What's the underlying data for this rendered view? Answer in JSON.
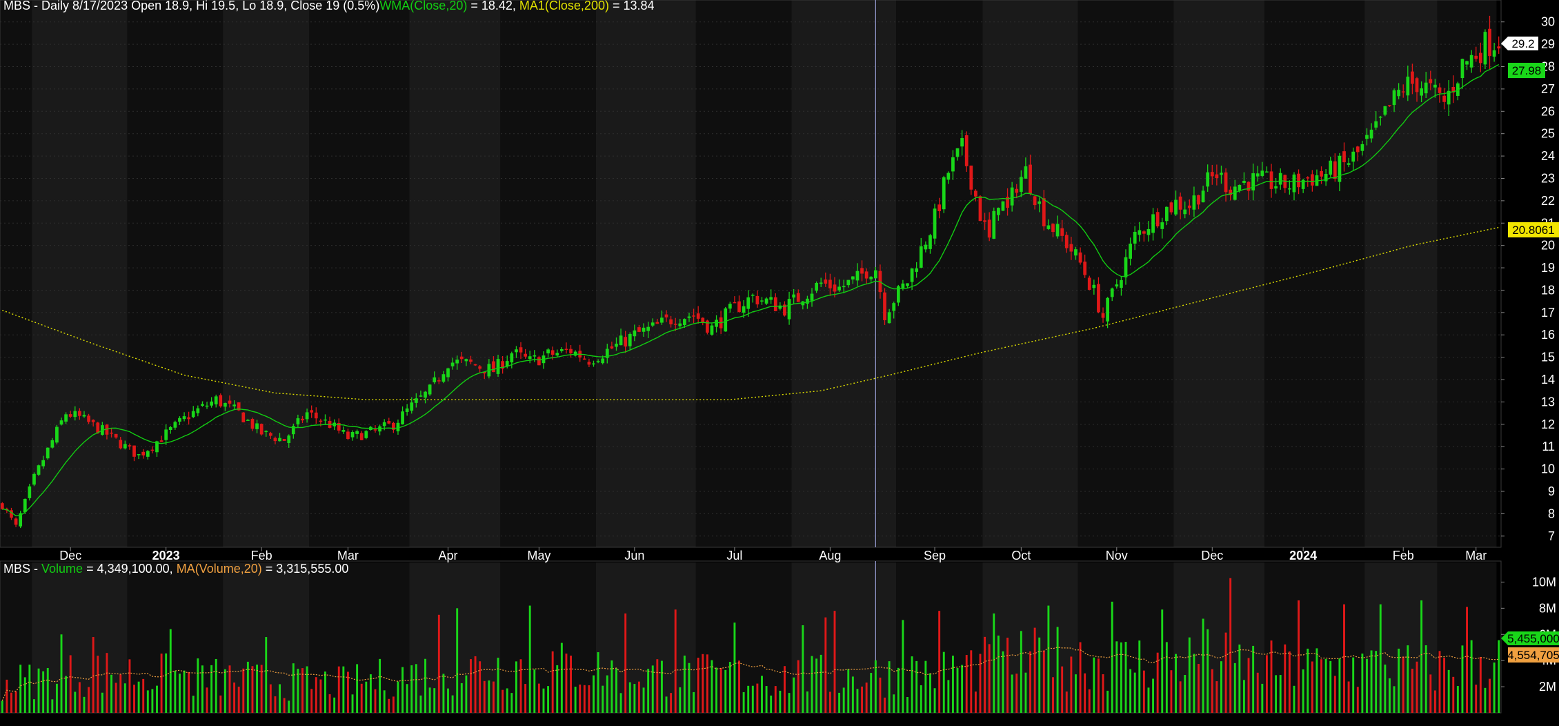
{
  "colors": {
    "up": "#19d719",
    "down": "#e01818",
    "wma": "#12cc12",
    "ma200": "#e0e000",
    "vol_ma": "#f0a040",
    "text": "#ffffff",
    "band_dark": "#0f0f0f",
    "band_light": "#1a1a1a",
    "grid": "#2e2e2e",
    "cursor": "#9aa0d8"
  },
  "price_panel": {
    "symbol": "MBS",
    "header_main": "MBS - Daily 8/17/2023 Open 18.9, Hi 19.5, Lo 18.9, Close 19 (0.5%)",
    "header_wma_label": "WMA(Close,20)",
    "header_wma_value": " = 18.42, ",
    "header_ma_label": "MA1(Close,200)",
    "header_ma_value": " = 13.84",
    "last_price_tag": "29.2",
    "wma_tag": "27.98",
    "ma200_tag": "20.8061"
  },
  "volume_panel": {
    "header_main": "MBS - ",
    "header_vol_label": "Volume",
    "header_vol_value": " = 4,349,100.00, ",
    "header_ma_label": "MA(Volume,20)",
    "header_ma_value": " = 3,315,555.00",
    "volume_tag": "5,455,000",
    "vol_ma_tag": "4,554,705"
  },
  "chart_data": [
    {
      "type": "candlestick",
      "title": "MBS - Daily",
      "ylim": [
        6.5,
        30.3
      ],
      "y_ticks": [
        7,
        8,
        9,
        10,
        11,
        12,
        13,
        14,
        15,
        16,
        17,
        18,
        19,
        20,
        21,
        22,
        23,
        24,
        25,
        26,
        27,
        28,
        29,
        30
      ],
      "x_tick_labels": [
        {
          "label": "Dec",
          "bar": 15,
          "bold": false
        },
        {
          "label": "2023",
          "bar": 36,
          "bold": true
        },
        {
          "label": "Feb",
          "bar": 57,
          "bold": false
        },
        {
          "label": "Mar",
          "bar": 76,
          "bold": false
        },
        {
          "label": "Apr",
          "bar": 98,
          "bold": false
        },
        {
          "label": "May",
          "bar": 118,
          "bold": false
        },
        {
          "label": "Jun",
          "bar": 139,
          "bold": false
        },
        {
          "label": "Jul",
          "bar": 161,
          "bold": false
        },
        {
          "label": "Aug",
          "bar": 182,
          "bold": false
        },
        {
          "label": "Sep",
          "bar": 205,
          "bold": false
        },
        {
          "label": "Oct",
          "bar": 224,
          "bold": false
        },
        {
          "label": "Nov",
          "bar": 245,
          "bold": false
        },
        {
          "label": "Dec",
          "bar": 266,
          "bold": false
        },
        {
          "label": "2024",
          "bar": 286,
          "bold": true
        },
        {
          "label": "Feb",
          "bar": 308,
          "bold": false
        },
        {
          "label": "Mar",
          "bar": 324,
          "bold": false
        }
      ],
      "cursor_bar": 192,
      "bar_count": 330,
      "price_path_anchors": [
        [
          0,
          8.4
        ],
        [
          3,
          7.4
        ],
        [
          7,
          9.6
        ],
        [
          14,
          12.5
        ],
        [
          17,
          12.3
        ],
        [
          22,
          11.7
        ],
        [
          27,
          11.0
        ],
        [
          30,
          10.6
        ],
        [
          35,
          11.4
        ],
        [
          41,
          12.4
        ],
        [
          47,
          13.1
        ],
        [
          52,
          12.5
        ],
        [
          57,
          11.6
        ],
        [
          62,
          11.3
        ],
        [
          67,
          12.5
        ],
        [
          72,
          12.0
        ],
        [
          76,
          11.4
        ],
        [
          82,
          11.7
        ],
        [
          86,
          12.0
        ],
        [
          90,
          12.8
        ],
        [
          94,
          13.5
        ],
        [
          98,
          14.8
        ],
        [
          103,
          14.7
        ],
        [
          108,
          14.4
        ],
        [
          112,
          15.2
        ],
        [
          116,
          14.8
        ],
        [
          120,
          15.1
        ],
        [
          125,
          15.3
        ],
        [
          129,
          14.9
        ],
        [
          134,
          15.4
        ],
        [
          139,
          16.0
        ],
        [
          143,
          16.3
        ],
        [
          148,
          16.8
        ],
        [
          152,
          16.9
        ],
        [
          156,
          16.3
        ],
        [
          161,
          17.2
        ],
        [
          165,
          17.7
        ],
        [
          168,
          17.5
        ],
        [
          172,
          17.2
        ],
        [
          176,
          17.8
        ],
        [
          180,
          18.3
        ],
        [
          184,
          18.1
        ],
        [
          188,
          18.5
        ],
        [
          190,
          18.9
        ],
        [
          192,
          19.0
        ],
        [
          194,
          17.0
        ],
        [
          196,
          17.6
        ],
        [
          199,
          18.4
        ],
        [
          202,
          19.8
        ],
        [
          205,
          21.2
        ],
        [
          208,
          23.3
        ],
        [
          211,
          24.3
        ],
        [
          213,
          23.0
        ],
        [
          215,
          21.4
        ],
        [
          217,
          20.2
        ],
        [
          219,
          22.1
        ],
        [
          221,
          21.5
        ],
        [
          223,
          22.8
        ],
        [
          225,
          23.3
        ],
        [
          227,
          22.3
        ],
        [
          229,
          21.3
        ],
        [
          231,
          20.8
        ],
        [
          234,
          20.1
        ],
        [
          237,
          19.2
        ],
        [
          240,
          17.9
        ],
        [
          242,
          16.8
        ],
        [
          244,
          17.8
        ],
        [
          246,
          18.8
        ],
        [
          249,
          20.4
        ],
        [
          252,
          21.0
        ],
        [
          255,
          21.5
        ],
        [
          258,
          21.9
        ],
        [
          261,
          21.8
        ],
        [
          264,
          22.6
        ],
        [
          267,
          23.2
        ],
        [
          270,
          22.6
        ],
        [
          274,
          22.9
        ],
        [
          279,
          22.8
        ],
        [
          283,
          22.7
        ],
        [
          287,
          23.0
        ],
        [
          291,
          23.2
        ],
        [
          295,
          23.6
        ],
        [
          298,
          24.1
        ],
        [
          302,
          25.1
        ],
        [
          305,
          26.2
        ],
        [
          308,
          27.1
        ],
        [
          311,
          27.3
        ],
        [
          314,
          26.9
        ],
        [
          317,
          26.4
        ],
        [
          319,
          27.2
        ],
        [
          321,
          28.1
        ],
        [
          323,
          28.4
        ],
        [
          326,
          29.0
        ],
        [
          329,
          29.2
        ]
      ],
      "series": [
        {
          "name": "WMA(Close,20)",
          "last": 27.98,
          "header_value": 18.42
        },
        {
          "name": "MA1(Close,200)",
          "last": 20.8061,
          "header_value": 13.84
        }
      ],
      "ma200_anchors": [
        [
          0,
          17.1
        ],
        [
          20,
          15.6
        ],
        [
          40,
          14.2
        ],
        [
          60,
          13.4
        ],
        [
          80,
          13.1
        ],
        [
          100,
          13.1
        ],
        [
          130,
          13.1
        ],
        [
          160,
          13.1
        ],
        [
          180,
          13.5
        ],
        [
          195,
          14.2
        ],
        [
          215,
          15.2
        ],
        [
          240,
          16.3
        ],
        [
          265,
          17.6
        ],
        [
          290,
          18.9
        ],
        [
          310,
          20.0
        ],
        [
          329,
          20.8061
        ]
      ],
      "last_bar": {
        "date": "8/17/2023",
        "open": 18.9,
        "high": 19.5,
        "low": 18.9,
        "close": 19,
        "change_pct": "0.5%"
      }
    },
    {
      "type": "bar",
      "title": "Volume",
      "ylim": [
        0,
        11500000
      ],
      "y_ticks": [
        {
          "value": 2000000,
          "label": "2M"
        },
        {
          "value": 4000000,
          "label": "4M"
        },
        {
          "value": 6000000,
          "label": "6M"
        },
        {
          "value": 8000000,
          "label": "8M"
        },
        {
          "value": 10000000,
          "label": "10M"
        }
      ],
      "series": [
        {
          "name": "Volume",
          "header_value": 4349100.0,
          "last": 5455000
        },
        {
          "name": "MA(Volume,20)",
          "header_value": 3315555.0,
          "last": 4554705
        }
      ],
      "volume_anchors": [
        [
          0,
          2.4
        ],
        [
          20,
          3.4
        ],
        [
          40,
          3.0
        ],
        [
          55,
          2.7
        ],
        [
          75,
          2.4
        ],
        [
          95,
          3.4
        ],
        [
          115,
          4.0
        ],
        [
          140,
          3.3
        ],
        [
          160,
          3.0
        ],
        [
          185,
          3.0
        ],
        [
          195,
          3.2
        ],
        [
          215,
          3.9
        ],
        [
          225,
          4.3
        ],
        [
          235,
          4.7
        ],
        [
          245,
          4.2
        ],
        [
          265,
          4.4
        ],
        [
          280,
          3.7
        ],
        [
          300,
          3.8
        ],
        [
          315,
          3.6
        ],
        [
          329,
          4.5
        ]
      ],
      "volume_spikes": [
        [
          13,
          6.0
        ],
        [
          20,
          5.8
        ],
        [
          37,
          6.4
        ],
        [
          58,
          5.8
        ],
        [
          96,
          7.5
        ],
        [
          100,
          8.0
        ],
        [
          116,
          8.2
        ],
        [
          137,
          7.6
        ],
        [
          148,
          7.9
        ],
        [
          161,
          6.9
        ],
        [
          176,
          6.7
        ],
        [
          181,
          7.3
        ],
        [
          183,
          7.8
        ],
        [
          198,
          7.1
        ],
        [
          206,
          7.8
        ],
        [
          218,
          7.6
        ],
        [
          230,
          8.2
        ],
        [
          244,
          8.5
        ],
        [
          255,
          7.9
        ],
        [
          264,
          7.2
        ],
        [
          270,
          10.3
        ],
        [
          285,
          8.6
        ],
        [
          295,
          8.3
        ],
        [
          303,
          8.3
        ],
        [
          312,
          8.6
        ],
        [
          322,
          8.1
        ]
      ]
    }
  ]
}
